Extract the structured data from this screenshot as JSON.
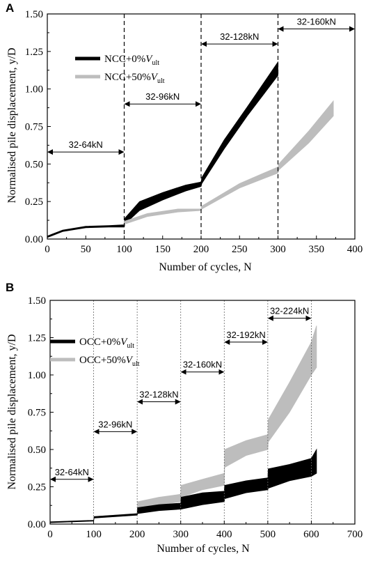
{
  "chart_data": [
    {
      "panel": "A",
      "type": "area",
      "xlabel": "Number of cycles, N",
      "ylabel": "Normalised pile displacement, y/D",
      "xlim": [
        0,
        400
      ],
      "ylim": [
        0,
        1.5
      ],
      "xticks": [
        "0",
        "50",
        "100",
        "150",
        "200",
        "250",
        "300",
        "350",
        "400"
      ],
      "yticks": [
        "0.00",
        "0.25",
        "0.50",
        "0.75",
        "1.00",
        "1.25",
        "1.50"
      ],
      "stage_lines": [
        100,
        200,
        300
      ],
      "stages": [
        {
          "label": "32-64kN",
          "x0": 0,
          "x1": 100,
          "y": 0.58
        },
        {
          "label": "32-96kN",
          "x0": 100,
          "x1": 200,
          "y": 0.9
        },
        {
          "label": "32-128kN",
          "x0": 200,
          "x1": 300,
          "y": 1.3
        },
        {
          "label": "32-160kN",
          "x0": 300,
          "x1": 400,
          "y": 1.4
        }
      ],
      "legend": [
        {
          "label": "NCC+0%V",
          "sub": "ult",
          "color": "#000000"
        },
        {
          "label": "NCC+50%V",
          "sub": "ult",
          "color": "#bdbdbd"
        }
      ],
      "series": [
        {
          "name": "NCC+0%Vult",
          "color": "#000000",
          "x": [
            0,
            5,
            20,
            50,
            80,
            100,
            101,
            120,
            150,
            180,
            200,
            201,
            230,
            260,
            300
          ],
          "lower": [
            0.01,
            0.02,
            0.05,
            0.075,
            0.08,
            0.08,
            0.1,
            0.19,
            0.26,
            0.32,
            0.35,
            0.37,
            0.6,
            0.82,
            1.09
          ],
          "upper": [
            0.02,
            0.03,
            0.06,
            0.085,
            0.09,
            0.095,
            0.14,
            0.25,
            0.31,
            0.36,
            0.38,
            0.41,
            0.66,
            0.88,
            1.18
          ]
        },
        {
          "name": "NCC+50%Vult",
          "color": "#bdbdbd",
          "x": [
            100,
            101,
            130,
            170,
            200,
            201,
            250,
            300,
            301,
            340,
            372
          ],
          "lower": [
            0.09,
            0.1,
            0.15,
            0.18,
            0.19,
            0.2,
            0.34,
            0.44,
            0.46,
            0.64,
            0.82
          ],
          "upper": [
            0.1,
            0.12,
            0.17,
            0.2,
            0.2,
            0.22,
            0.37,
            0.48,
            0.5,
            0.72,
            0.92
          ]
        }
      ]
    },
    {
      "panel": "B",
      "type": "area",
      "xlabel": "Number of cycles, N",
      "ylabel": "Normalised pile displacement, y/D",
      "xlim": [
        0,
        700
      ],
      "ylim": [
        0,
        1.5
      ],
      "xticks": [
        "0",
        "100",
        "200",
        "300",
        "400",
        "500",
        "600",
        "700"
      ],
      "yticks": [
        "0.00",
        "0.25",
        "0.50",
        "0.75",
        "1.00",
        "1.25",
        "1.50"
      ],
      "stage_lines": [
        100,
        200,
        300,
        400,
        500,
        600
      ],
      "stages": [
        {
          "label": "32-64kN",
          "x0": 0,
          "x1": 100,
          "y": 0.3
        },
        {
          "label": "32-96kN",
          "x0": 100,
          "x1": 200,
          "y": 0.62
        },
        {
          "label": "32-128kN",
          "x0": 200,
          "x1": 300,
          "y": 0.82
        },
        {
          "label": "32-160kN",
          "x0": 300,
          "x1": 400,
          "y": 1.02
        },
        {
          "label": "32-192kN",
          "x0": 400,
          "x1": 500,
          "y": 1.22
        },
        {
          "label": "32-224kN",
          "x0": 500,
          "x1": 600,
          "y": 1.38
        }
      ],
      "legend": [
        {
          "label": "OCC+0%V",
          "sub": "ult",
          "color": "#000000"
        },
        {
          "label": "OCC+50%V",
          "sub": "ult",
          "color": "#bdbdbd"
        }
      ],
      "series": [
        {
          "name": "OCC+50%Vult",
          "color": "#bdbdbd",
          "x": [
            0,
            100,
            101,
            200,
            201,
            250,
            300,
            301,
            350,
            400,
            401,
            450,
            500,
            501,
            550,
            600,
            612
          ],
          "lower": [
            0.01,
            0.02,
            0.04,
            0.06,
            0.1,
            0.13,
            0.15,
            0.18,
            0.23,
            0.26,
            0.38,
            0.46,
            0.5,
            0.55,
            0.75,
            1.0,
            1.05
          ],
          "upper": [
            0.015,
            0.025,
            0.05,
            0.07,
            0.15,
            0.18,
            0.2,
            0.26,
            0.3,
            0.34,
            0.5,
            0.56,
            0.6,
            0.7,
            0.95,
            1.22,
            1.33
          ]
        },
        {
          "name": "OCC+0%Vult",
          "color": "#000000",
          "x": [
            0,
            100,
            101,
            200,
            201,
            250,
            300,
            301,
            350,
            400,
            401,
            450,
            500,
            501,
            550,
            600,
            612
          ],
          "lower": [
            0.01,
            0.02,
            0.04,
            0.06,
            0.07,
            0.09,
            0.1,
            0.1,
            0.13,
            0.15,
            0.17,
            0.21,
            0.23,
            0.24,
            0.29,
            0.32,
            0.34
          ],
          "upper": [
            0.015,
            0.025,
            0.05,
            0.07,
            0.11,
            0.13,
            0.14,
            0.18,
            0.21,
            0.22,
            0.26,
            0.29,
            0.31,
            0.37,
            0.4,
            0.44,
            0.5
          ]
        }
      ]
    }
  ]
}
